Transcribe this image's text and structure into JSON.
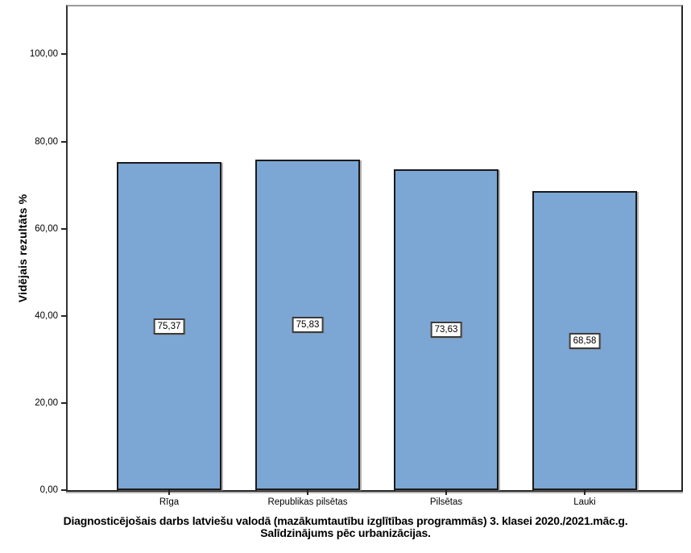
{
  "chart_data": {
    "type": "bar",
    "title_line1": "Diagnosticējošais darbs latviešu valodā (mazākumtautību izglītības programmās) 3. klasei 2020./2021.māc.g.",
    "title_line2": "Salīdzinājums pēc urbanizācijas.",
    "ylabel": "Vidējais rezultāts %",
    "xlabel": "",
    "categories": [
      "Rīga",
      "Republikas pilsētas",
      "Pilsētas",
      "Lauki"
    ],
    "values": [
      75.37,
      75.83,
      73.63,
      68.58
    ],
    "bar_value_labels": [
      "75,37",
      "75,83",
      "73,63",
      "68,58"
    ],
    "y_ticks": [
      0,
      20,
      40,
      60,
      80,
      100
    ],
    "y_tick_labels": [
      "0,00",
      "20,00",
      "40,00",
      "60,00",
      "80,00",
      "100,00"
    ],
    "ylim": [
      0,
      111.0
    ],
    "grid": false,
    "legend": "none",
    "bar_fill_color": "#7CA6D4",
    "bar_border_color": "#1A1A1A"
  }
}
